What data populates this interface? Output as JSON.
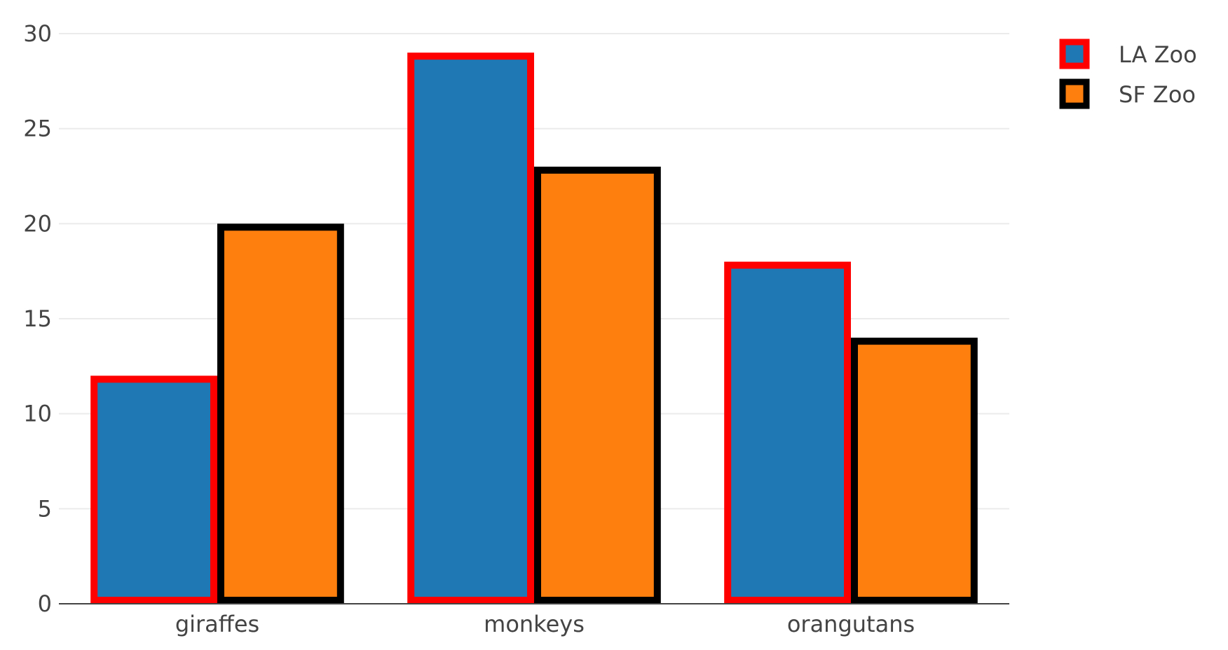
{
  "chart_data": {
    "type": "bar",
    "categories": [
      "giraffes",
      "monkeys",
      "orangutans"
    ],
    "series": [
      {
        "name": "LA Zoo",
        "values": [
          12,
          29,
          18
        ],
        "fill_color": "#1f77b4",
        "outline_color": "#ff0000"
      },
      {
        "name": "SF Zoo",
        "values": [
          20,
          23,
          14
        ],
        "fill_color": "#ff7f0e",
        "outline_color": "#000000"
      }
    ],
    "title": "",
    "xlabel": "",
    "ylabel": "",
    "ylim": [
      0,
      30
    ],
    "yticks": [
      0,
      5,
      10,
      15,
      20,
      25,
      30
    ],
    "grid": true,
    "legend_position": "top-right"
  }
}
